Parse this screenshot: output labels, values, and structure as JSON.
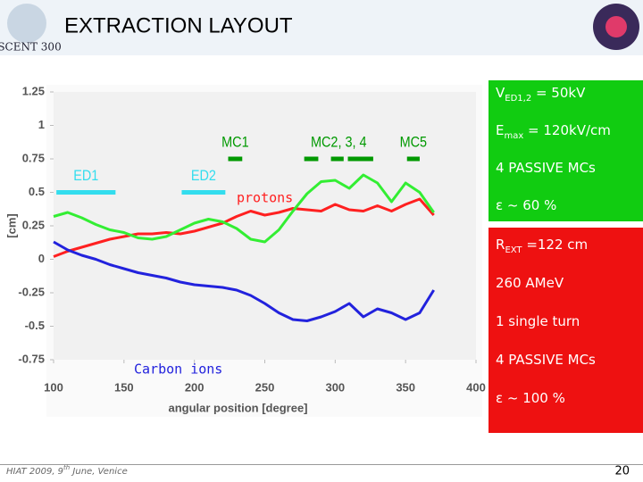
{
  "header": {
    "title": "EXTRACTION LAYOUT",
    "logo": "SCENT 300"
  },
  "chart_data": {
    "type": "line",
    "x_label": "angular position [degree]",
    "y_label": "[cm]",
    "x": [
      100,
      110,
      120,
      130,
      140,
      150,
      160,
      170,
      180,
      190,
      200,
      210,
      220,
      230,
      240,
      250,
      260,
      270,
      280,
      290,
      300,
      310,
      320,
      330,
      340,
      350,
      360,
      370
    ],
    "series": [
      {
        "name": "protons",
        "color": "#ff2020",
        "values": [
          0.02,
          0.06,
          0.09,
          0.12,
          0.15,
          0.17,
          0.19,
          0.19,
          0.2,
          0.19,
          0.21,
          0.24,
          0.27,
          0.32,
          0.36,
          0.33,
          0.35,
          0.38,
          0.37,
          0.36,
          0.41,
          0.37,
          0.36,
          0.4,
          0.36,
          0.41,
          0.45,
          0.33
        ]
      },
      {
        "color": "#33ee33",
        "values": [
          0.32,
          0.35,
          0.31,
          0.26,
          0.22,
          0.2,
          0.16,
          0.15,
          0.17,
          0.22,
          0.27,
          0.3,
          0.28,
          0.23,
          0.15,
          0.13,
          0.22,
          0.36,
          0.49,
          0.58,
          0.59,
          0.53,
          0.63,
          0.57,
          0.43,
          0.57,
          0.5,
          0.35
        ]
      },
      {
        "name": "Carbon ions",
        "color": "#2222dd",
        "values": [
          0.13,
          0.07,
          0.03,
          0,
          -0.04,
          -0.07,
          -0.1,
          -0.12,
          -0.14,
          -0.17,
          -0.19,
          -0.2,
          -0.21,
          -0.23,
          -0.27,
          -0.33,
          -0.4,
          -0.45,
          -0.46,
          -0.43,
          -0.39,
          -0.33,
          -0.43,
          -0.37,
          -0.4,
          -0.45,
          -0.4,
          -0.23
        ]
      }
    ],
    "elements": [
      {
        "label": "ED1",
        "color": "#33ddee",
        "y": 0.5,
        "segments": [
          [
            102,
            144
          ]
        ]
      },
      {
        "label": "ED2",
        "color": "#33ddee",
        "y": 0.5,
        "segments": [
          [
            191,
            222
          ]
        ]
      },
      {
        "label": "MC1",
        "color": "#009900",
        "y": 0.75,
        "segments": [
          [
            224,
            234
          ]
        ]
      },
      {
        "label": "MC2, 3, 4",
        "color": "#009900",
        "y": 0.75,
        "segments": [
          [
            278,
            288
          ],
          [
            297,
            306
          ],
          [
            309,
            327
          ]
        ]
      },
      {
        "label": "MC5",
        "color": "#009900",
        "y": 0.75,
        "segments": [
          [
            351,
            360
          ]
        ]
      }
    ],
    "xlim": [
      100,
      400
    ],
    "xticks": [
      100,
      150,
      200,
      250,
      300,
      350,
      400
    ],
    "ylim": [
      -0.75,
      1.25
    ],
    "yticks": [
      1.25,
      1,
      0.75,
      0.5,
      0.25,
      0,
      -0.25,
      -0.5,
      -0.75
    ],
    "grid": false
  },
  "box_1": {
    "color": "#11cc11",
    "lines": [
      {
        "main": "V",
        "sub": "ED1,2",
        "rest": " = 50kV"
      },
      {
        "main": "E",
        "sub": "max",
        "rest": " = 120kV/cm"
      },
      {
        "main": "4 PASSIVE MCs"
      },
      {
        "main": "ε ~ 60 %"
      }
    ]
  },
  "box_2": {
    "color": "#ee1111",
    "lines": [
      {
        "main": "R",
        "sub": "EXT",
        "rest": " =122 cm"
      },
      {
        "main": "260 AMeV"
      },
      {
        "main": "1 single turn"
      },
      {
        "main": "4 PASSIVE MCs"
      },
      {
        "main": "ε ~ 100 %"
      }
    ]
  },
  "footer": {
    "note": {
      "main": "HIAT 2009, 9",
      "sup": "th",
      "rest": " June, Venice"
    },
    "page": "20"
  }
}
